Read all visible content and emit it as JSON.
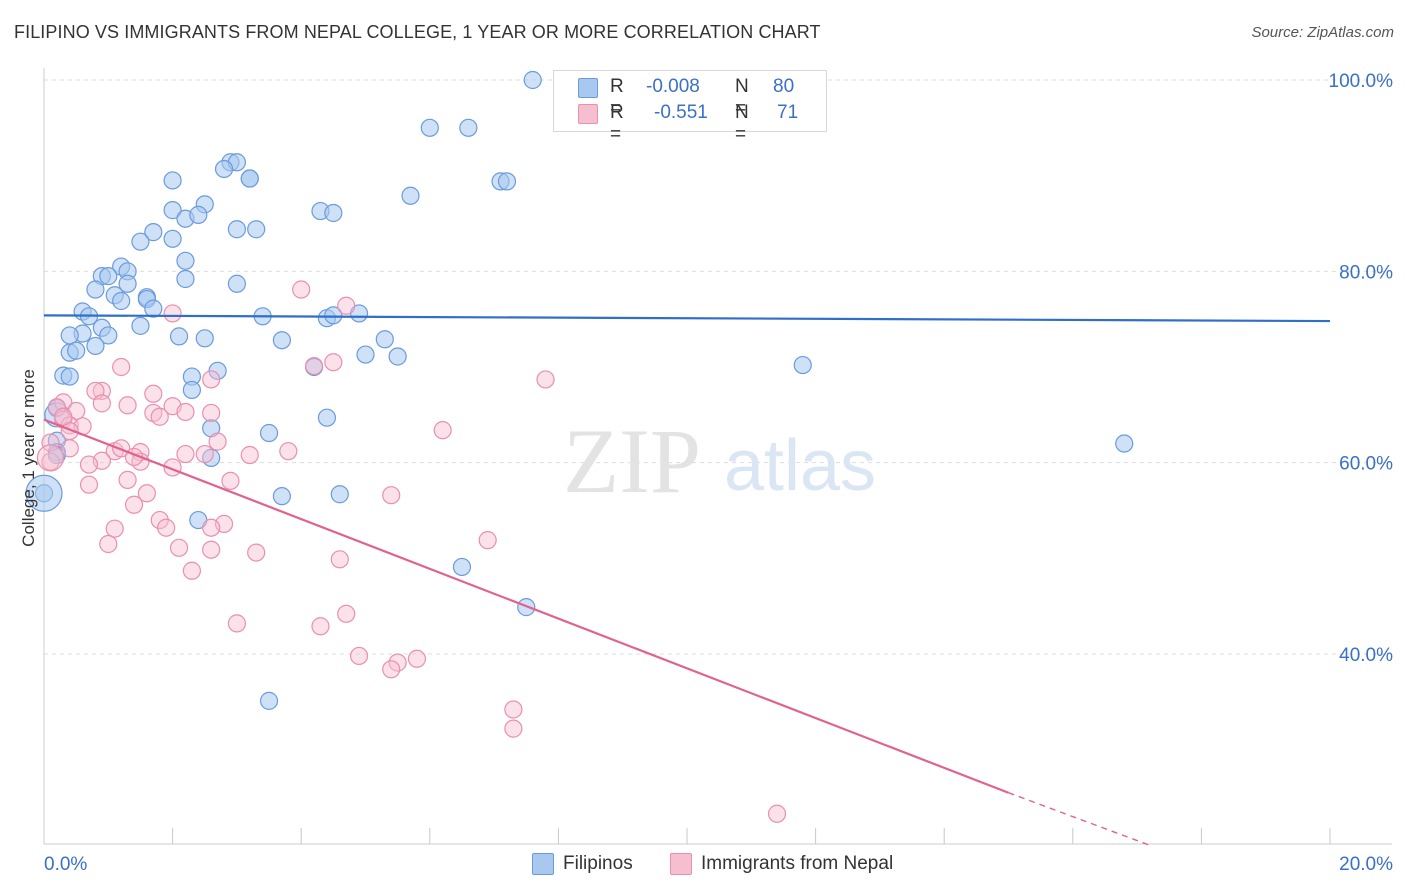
{
  "title": "FILIPINO VS IMMIGRANTS FROM NEPAL COLLEGE, 1 YEAR OR MORE CORRELATION CHART",
  "source": "Source: ZipAtlas.com",
  "watermark": {
    "zip": "ZIP",
    "atlas": "atlas"
  },
  "colors": {
    "blue_fill": "#a8c8f0",
    "blue_stroke": "#6a9bdc",
    "blue_line": "#2f6fc9",
    "pink_fill": "#f6bfd0",
    "pink_stroke": "#ea8fae",
    "pink_line": "#e0628f",
    "tick_text": "#3a70c7",
    "grid": "#dddddd"
  },
  "legend": {
    "r_label": "R =",
    "n_label": "N =",
    "series": [
      {
        "name": "Filipinos",
        "r": "-0.008",
        "n": "80"
      },
      {
        "name": "Immigrants from Nepal",
        "r": "-0.551",
        "n": "71"
      }
    ]
  },
  "chart_data": {
    "type": "scatter",
    "title": "FILIPINO VS IMMIGRANTS FROM NEPAL COLLEGE, 1 YEAR OR MORE CORRELATION CHART",
    "xlabel": "",
    "ylabel": "College, 1 year or more",
    "xlim": [
      0,
      20
    ],
    "ylim": [
      20,
      102
    ],
    "x_tick_labels": [
      {
        "value": 0,
        "label": "0.0%"
      },
      {
        "value": 20,
        "label": "20.0%"
      }
    ],
    "y_tick_labels": [
      {
        "value": 100,
        "label": "100.0%"
      },
      {
        "value": 80,
        "label": "80.0%"
      },
      {
        "value": 60,
        "label": "60.0%"
      },
      {
        "value": 40,
        "label": "40.0%"
      }
    ],
    "x_minor_ticks": [
      2,
      4,
      6,
      8,
      10,
      12,
      14,
      16,
      18
    ],
    "legend_position": "top-center",
    "series": [
      {
        "name": "Filipinos",
        "trend": {
          "x0": 0,
          "y0": 75.4,
          "x1": 20,
          "y1": 74.8
        },
        "points": [
          [
            7.6,
            100
          ],
          [
            6.0,
            95
          ],
          [
            6.6,
            95
          ],
          [
            2.9,
            91.4
          ],
          [
            3.0,
            91.4
          ],
          [
            2.8,
            90.7
          ],
          [
            3.2,
            89.7
          ],
          [
            3.2,
            89.7
          ],
          [
            2.0,
            89.5
          ],
          [
            7.1,
            89.4
          ],
          [
            7.2,
            89.4
          ],
          [
            5.7,
            87.9
          ],
          [
            2.5,
            87
          ],
          [
            2.0,
            86.4
          ],
          [
            4.3,
            86.3
          ],
          [
            4.5,
            86.1
          ],
          [
            2.2,
            85.5
          ],
          [
            2.4,
            85.9
          ],
          [
            3.3,
            84.4
          ],
          [
            3.0,
            84.4
          ],
          [
            1.7,
            84.1
          ],
          [
            1.5,
            83.1
          ],
          [
            2.0,
            83.4
          ],
          [
            2.2,
            81.1
          ],
          [
            1.2,
            80.5
          ],
          [
            0.9,
            79.5
          ],
          [
            1.0,
            79.5
          ],
          [
            1.3,
            80
          ],
          [
            2.2,
            79.2
          ],
          [
            3.0,
            78.7
          ],
          [
            1.3,
            78.7
          ],
          [
            0.8,
            78.1
          ],
          [
            1.6,
            77.3
          ],
          [
            1.1,
            77.5
          ],
          [
            1.6,
            77.1
          ],
          [
            1.2,
            76.9
          ],
          [
            1.7,
            76.1
          ],
          [
            0.6,
            75.8
          ],
          [
            3.4,
            75.3
          ],
          [
            0.7,
            75.3
          ],
          [
            4.4,
            75.1
          ],
          [
            4.5,
            75.4
          ],
          [
            4.9,
            75.6
          ],
          [
            1.5,
            74.3
          ],
          [
            0.9,
            74.1
          ],
          [
            0.6,
            73.5
          ],
          [
            0.4,
            73.3
          ],
          [
            1.0,
            73.3
          ],
          [
            2.1,
            73.2
          ],
          [
            2.5,
            73
          ],
          [
            3.7,
            72.8
          ],
          [
            5.3,
            72.9
          ],
          [
            0.8,
            72.2
          ],
          [
            0.4,
            71.5
          ],
          [
            0.5,
            71.7
          ],
          [
            5.0,
            71.3
          ],
          [
            5.5,
            71.1
          ],
          [
            11.8,
            70.2
          ],
          [
            4.2,
            70
          ],
          [
            2.7,
            69.6
          ],
          [
            0.3,
            69.1
          ],
          [
            2.3,
            69
          ],
          [
            0.4,
            69
          ],
          [
            2.3,
            67.6
          ],
          [
            0.2,
            65.7
          ],
          [
            4.4,
            64.7
          ],
          [
            2.6,
            63.6
          ],
          [
            3.5,
            63.1
          ],
          [
            0.2,
            62.3
          ],
          [
            16.8,
            62
          ],
          [
            0.2,
            61.1
          ],
          [
            2.6,
            60.5
          ],
          [
            0.0,
            56.8
          ],
          [
            3.7,
            56.5
          ],
          [
            4.6,
            56.7
          ],
          [
            2.4,
            54
          ],
          [
            6.5,
            49.1
          ],
          [
            7.5,
            44.9
          ],
          [
            3.5,
            35.1
          ],
          [
            0.2,
            60.8
          ]
        ]
      },
      {
        "name": "Immigrants from Nepal",
        "trend": {
          "x0": 0,
          "y0": 64.5,
          "x1": 15,
          "y1": 25.5,
          "dash_to": {
            "x": 17.2,
            "y": 20
          }
        },
        "points": [
          [
            4.0,
            78.1
          ],
          [
            4.7,
            76.4
          ],
          [
            2.0,
            75.6
          ],
          [
            4.5,
            70.5
          ],
          [
            4.2,
            70.1
          ],
          [
            1.2,
            70
          ],
          [
            7.8,
            68.7
          ],
          [
            2.6,
            68.7
          ],
          [
            0.9,
            67.5
          ],
          [
            0.8,
            67.5
          ],
          [
            1.7,
            67.2
          ],
          [
            0.3,
            66.3
          ],
          [
            0.9,
            66.2
          ],
          [
            1.3,
            66
          ],
          [
            2.0,
            65.9
          ],
          [
            0.2,
            65.8
          ],
          [
            0.5,
            65.4
          ],
          [
            1.7,
            65.2
          ],
          [
            2.2,
            65.3
          ],
          [
            2.6,
            65.2
          ],
          [
            1.8,
            64.8
          ],
          [
            0.3,
            64.5
          ],
          [
            0.4,
            63.9
          ],
          [
            0.6,
            63.8
          ],
          [
            6.2,
            63.4
          ],
          [
            0.4,
            63.3
          ],
          [
            2.7,
            62.2
          ],
          [
            0.1,
            62.1
          ],
          [
            0.4,
            61.5
          ],
          [
            3.8,
            61.2
          ],
          [
            1.1,
            61.2
          ],
          [
            1.5,
            61.1
          ],
          [
            2.2,
            60.9
          ],
          [
            2.5,
            60.9
          ],
          [
            3.2,
            60.8
          ],
          [
            0.9,
            60.2
          ],
          [
            1.5,
            60.1
          ],
          [
            0.1,
            60.1
          ],
          [
            0.7,
            59.8
          ],
          [
            2.0,
            59.5
          ],
          [
            1.3,
            58.2
          ],
          [
            2.9,
            58.1
          ],
          [
            0.7,
            57.7
          ],
          [
            1.6,
            56.8
          ],
          [
            5.4,
            56.6
          ],
          [
            1.4,
            55.6
          ],
          [
            1.8,
            54
          ],
          [
            2.8,
            53.6
          ],
          [
            1.9,
            53.2
          ],
          [
            2.6,
            53.2
          ],
          [
            1.1,
            53.1
          ],
          [
            6.9,
            51.9
          ],
          [
            1.0,
            51.5
          ],
          [
            2.1,
            51.1
          ],
          [
            2.6,
            50.9
          ],
          [
            3.3,
            50.6
          ],
          [
            4.6,
            49.9
          ],
          [
            2.3,
            48.7
          ],
          [
            4.7,
            44.2
          ],
          [
            3.0,
            43.2
          ],
          [
            4.3,
            42.9
          ],
          [
            4.9,
            39.8
          ],
          [
            5.8,
            39.5
          ],
          [
            5.5,
            39.1
          ],
          [
            5.4,
            38.4
          ],
          [
            7.3,
            34.2
          ],
          [
            7.3,
            32.2
          ],
          [
            11.4,
            23.3
          ],
          [
            0.3,
            64.8
          ],
          [
            1.2,
            61.5
          ],
          [
            1.4,
            60.6
          ]
        ]
      }
    ]
  }
}
